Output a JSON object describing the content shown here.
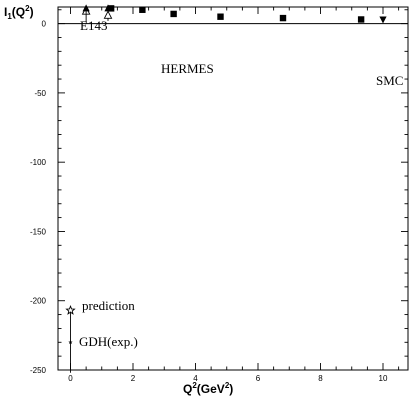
{
  "chart_data": {
    "type": "scatter",
    "title": "",
    "xlabel": "Q²(GeV²)",
    "ylabel": "I₁(Q²)",
    "xlim": [
      -0.4,
      10.8
    ],
    "ylim": [
      -250,
      12
    ],
    "x_ticks": [
      0,
      2,
      4,
      6,
      8,
      10
    ],
    "y_ticks": [
      0,
      -50,
      -100,
      -150,
      -200,
      -250
    ],
    "grid": false,
    "reference_line_y": 0,
    "series": [
      {
        "name": "E143",
        "marker": "open-triangle",
        "points": [
          {
            "x": 0.5,
            "y": 9,
            "err": 8
          },
          {
            "x": 1.2,
            "y": 6,
            "err": 4
          }
        ]
      },
      {
        "name": "E143",
        "marker": "filled-triangle",
        "points": [
          {
            "x": 0.5,
            "y": 11,
            "err": 4
          },
          {
            "x": 1.2,
            "y": 11,
            "err": 3
          }
        ]
      },
      {
        "name": "HERMES",
        "marker": "filled-square",
        "points": [
          {
            "x": 1.3,
            "y": 11
          },
          {
            "x": 2.3,
            "y": 10
          },
          {
            "x": 3.3,
            "y": 7
          },
          {
            "x": 4.8,
            "y": 5
          },
          {
            "x": 6.8,
            "y": 4
          },
          {
            "x": 9.3,
            "y": 3
          }
        ]
      },
      {
        "name": "SMC",
        "marker": "filled-inverted-triangle",
        "points": [
          {
            "x": 10.0,
            "y": 3
          }
        ]
      },
      {
        "name": "prediction",
        "marker": "open-star",
        "points": [
          {
            "x": 0.0,
            "y": -207
          }
        ]
      },
      {
        "name": "GDH(exp.)",
        "marker": "small-star",
        "points": [
          {
            "x": 0.0,
            "y": -230,
            "err": 22
          }
        ]
      }
    ],
    "annotations": [
      "E143",
      "HERMES",
      "SMC",
      "prediction",
      "GDH(exp.)"
    ]
  }
}
